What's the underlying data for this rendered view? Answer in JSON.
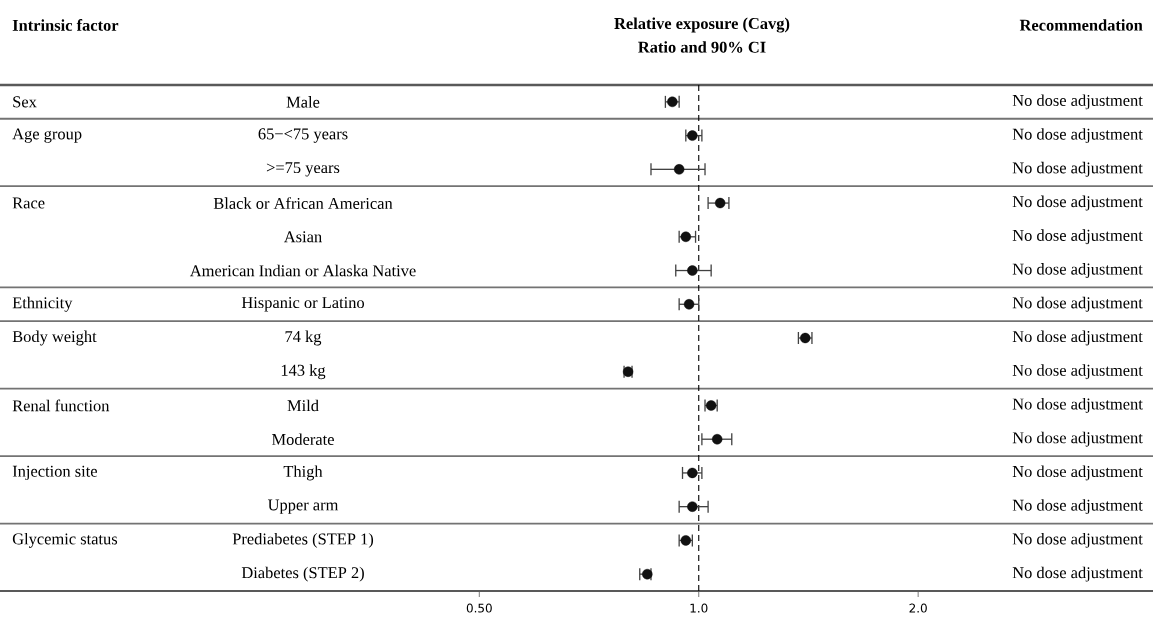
{
  "chart_data": {
    "type": "scatter",
    "orientation": "horizontal",
    "title": "Relative exposure (Cavg)",
    "subtitle": "Ratio and 90% CI",
    "ylabel": "Intrinsic factor",
    "categories": [
      "Male",
      "65−<75 years",
      ">=75 years",
      "Black or African American",
      "Asian",
      "American Indian or Alaska Native",
      "Hispanic or Latino",
      "74 kg",
      "143 kg",
      "Mild",
      "Moderate",
      "Thigh",
      "Upper arm",
      "Prediabetes (STEP 1)",
      "Diabetes (STEP 2)"
    ],
    "values": [
      0.92,
      0.98,
      0.94,
      1.07,
      0.96,
      0.98,
      0.97,
      1.4,
      0.8,
      1.04,
      1.06,
      0.98,
      0.98,
      0.96,
      0.85
    ],
    "errors": [
      [
        0.9,
        0.94
      ],
      [
        0.96,
        1.01
      ],
      [
        0.86,
        1.02
      ],
      [
        1.03,
        1.1
      ],
      [
        0.94,
        0.99
      ],
      [
        0.93,
        1.04
      ],
      [
        0.94,
        1.0
      ],
      [
        1.37,
        1.43
      ],
      [
        0.79,
        0.81
      ],
      [
        1.02,
        1.06
      ],
      [
        1.01,
        1.11
      ],
      [
        0.95,
        1.01
      ],
      [
        0.94,
        1.03
      ],
      [
        0.94,
        0.98
      ],
      [
        0.83,
        0.86
      ]
    ],
    "color": "#111111",
    "log": "x",
    "xlim": [
      0.11,
      4.2
    ],
    "xticks": [
      {
        "value": 0.5,
        "label": "0.50"
      },
      {
        "value": 1,
        "label": "1.0"
      },
      {
        "value": 2,
        "label": "2.0"
      }
    ],
    "ref_lines": [
      {
        "axis": "x",
        "value": 1,
        "line_style": "dashed"
      }
    ],
    "annotations": [
      "Recommendation",
      "No dose adjustment",
      "No dose adjustment",
      "No dose adjustment",
      "No dose adjustment",
      "No dose adjustment",
      "No dose adjustment",
      "No dose adjustment",
      "No dose adjustment",
      "No dose adjustment",
      "No dose adjustment",
      "No dose adjustment",
      "No dose adjustment",
      "No dose adjustment",
      "No dose adjustment",
      "No dose adjustment",
      "Sex",
      "Age group",
      "Race",
      "Ethnicity",
      "Body weight",
      "Renal function",
      "Injection site",
      "Glycemic status"
    ]
  }
}
